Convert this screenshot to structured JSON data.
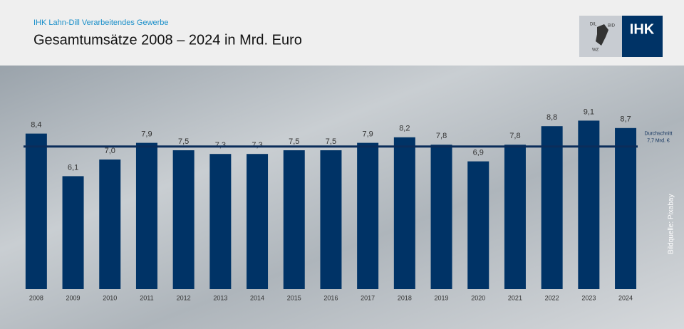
{
  "header": {
    "subtitle": "IHK Lahn-Dill Verarbeitendes Gewerbe",
    "logo": "IHK",
    "logo_small": [
      "DIL",
      "BID",
      "WZ"
    ]
  },
  "chart_data": {
    "type": "bar",
    "title": "Gesamtumsätze 2008 – 2024 in Mrd. Euro",
    "categories": [
      "2008",
      "2009",
      "2010",
      "2011",
      "2012",
      "2013",
      "2014",
      "2015",
      "2016",
      "2017",
      "2018",
      "2019",
      "2020",
      "2021",
      "2022",
      "2023",
      "2024"
    ],
    "values": [
      8.4,
      6.1,
      7.0,
      7.9,
      7.5,
      7.3,
      7.3,
      7.5,
      7.5,
      7.9,
      8.2,
      7.8,
      6.9,
      7.8,
      8.8,
      9.1,
      8.7
    ],
    "value_labels": [
      "8,4",
      "6,1",
      "7,0",
      "7,9",
      "7,5",
      "7,3",
      "7,3",
      "7,5",
      "7,5",
      "7,9",
      "8,2",
      "7,8",
      "6,9",
      "7,8",
      "8,8",
      "9,1",
      "8,7"
    ],
    "color": "#003366",
    "ylim": [
      0,
      10
    ],
    "average_line": {
      "value": 7.7,
      "label_lines": [
        "Durchschnitt",
        "7,7 Mrd. €"
      ]
    },
    "source": "Bildquelle: Pixabay"
  }
}
